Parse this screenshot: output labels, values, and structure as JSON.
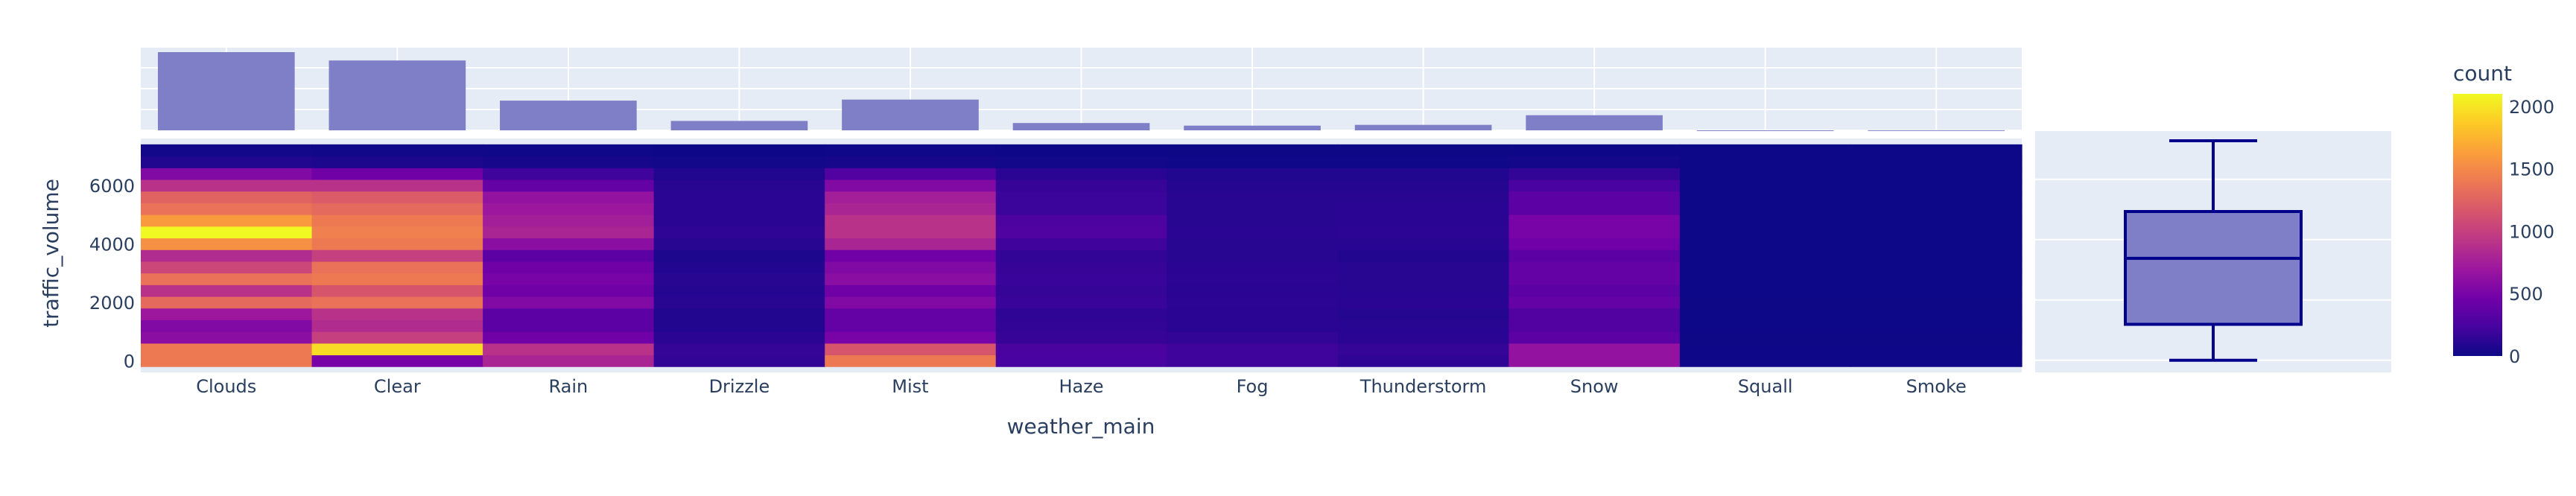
{
  "chart_data": [
    {
      "type": "heatmap",
      "xlabel": "weather_main",
      "ylabel": "traffic_volume",
      "categories": [
        "Clouds",
        "Clear",
        "Rain",
        "Drizzle",
        "Mist",
        "Haze",
        "Fog",
        "Thunderstorm",
        "Snow",
        "Squall",
        "Smoke"
      ],
      "y_ticks": [
        0,
        2000,
        4000,
        6000
      ],
      "y_bin_size": 400,
      "y_bin_starts": [
        0,
        400,
        800,
        1200,
        1600,
        2000,
        2400,
        2800,
        3200,
        3600,
        4000,
        4400,
        4800,
        5200,
        5600,
        6000,
        6400,
        6800,
        7200
      ],
      "ylim": [
        -400,
        7600
      ],
      "z_counts": [
        [
          1400,
          500,
          800,
          150,
          1400,
          250,
          200,
          140,
          650,
          5,
          5
        ],
        [
          1400,
          1950,
          900,
          160,
          1150,
          260,
          200,
          160,
          650,
          5,
          5
        ],
        [
          600,
          1000,
          450,
          120,
          500,
          170,
          150,
          120,
          350,
          3,
          3
        ],
        [
          550,
          850,
          350,
          90,
          400,
          150,
          120,
          110,
          300,
          2,
          2
        ],
        [
          700,
          900,
          350,
          90,
          400,
          140,
          120,
          100,
          300,
          2,
          2
        ],
        [
          1300,
          1350,
          550,
          110,
          550,
          180,
          130,
          120,
          400,
          3,
          3
        ],
        [
          900,
          1150,
          450,
          100,
          450,
          160,
          120,
          110,
          350,
          2,
          2
        ],
        [
          1350,
          1400,
          500,
          110,
          600,
          180,
          130,
          110,
          400,
          2,
          2
        ],
        [
          1050,
          1350,
          450,
          90,
          550,
          170,
          120,
          110,
          400,
          2,
          2
        ],
        [
          850,
          1000,
          350,
          60,
          450,
          150,
          110,
          90,
          350,
          1,
          1
        ],
        [
          1550,
          1400,
          600,
          110,
          800,
          210,
          110,
          110,
          450,
          1,
          1
        ],
        [
          2100,
          1450,
          800,
          140,
          900,
          290,
          120,
          130,
          500,
          1,
          1
        ],
        [
          1600,
          1400,
          750,
          120,
          900,
          270,
          110,
          120,
          500,
          1,
          1
        ],
        [
          1350,
          1300,
          700,
          120,
          800,
          190,
          110,
          120,
          350,
          1,
          1
        ],
        [
          1250,
          1200,
          650,
          120,
          750,
          190,
          110,
          110,
          350,
          1,
          1
        ],
        [
          900,
          900,
          400,
          110,
          550,
          170,
          100,
          100,
          250,
          1,
          1
        ],
        [
          550,
          450,
          200,
          80,
          300,
          120,
          80,
          80,
          150,
          1,
          1
        ],
        [
          80,
          60,
          40,
          20,
          40,
          20,
          10,
          10,
          30,
          0,
          0
        ],
        [
          20,
          15,
          10,
          5,
          10,
          5,
          3,
          3,
          5,
          0,
          0
        ]
      ],
      "colorbar": {
        "title": "count",
        "range": [
          0,
          2100
        ],
        "ticks": [
          0,
          500,
          1000,
          1500,
          2000
        ],
        "colorscale": [
          "#0d0887",
          "#46039f",
          "#7201a8",
          "#9c179e",
          "#bd3786",
          "#d8576b",
          "#ed7953",
          "#fb9f3a",
          "#fdca26",
          "#f0f921"
        ]
      }
    },
    {
      "type": "bar",
      "title": "",
      "categories": [
        "Clouds",
        "Clear",
        "Rain",
        "Drizzle",
        "Mist",
        "Haze",
        "Fog",
        "Thunderstorm",
        "Snow",
        "Squall",
        "Smoke"
      ],
      "values": [
        15000,
        13400,
        5700,
        1800,
        5900,
        1400,
        900,
        1050,
        2900,
        4,
        20
      ],
      "ylim": [
        0,
        16000
      ],
      "color": "#7f7fc7"
    },
    {
      "type": "box",
      "variable": "traffic_volume",
      "min": 0,
      "q1": 1193,
      "median": 3380,
      "q3": 4933,
      "max": 7280,
      "ylim": [
        -400,
        7600
      ],
      "color": "#00008b",
      "fill": "#7f7fc7"
    }
  ]
}
